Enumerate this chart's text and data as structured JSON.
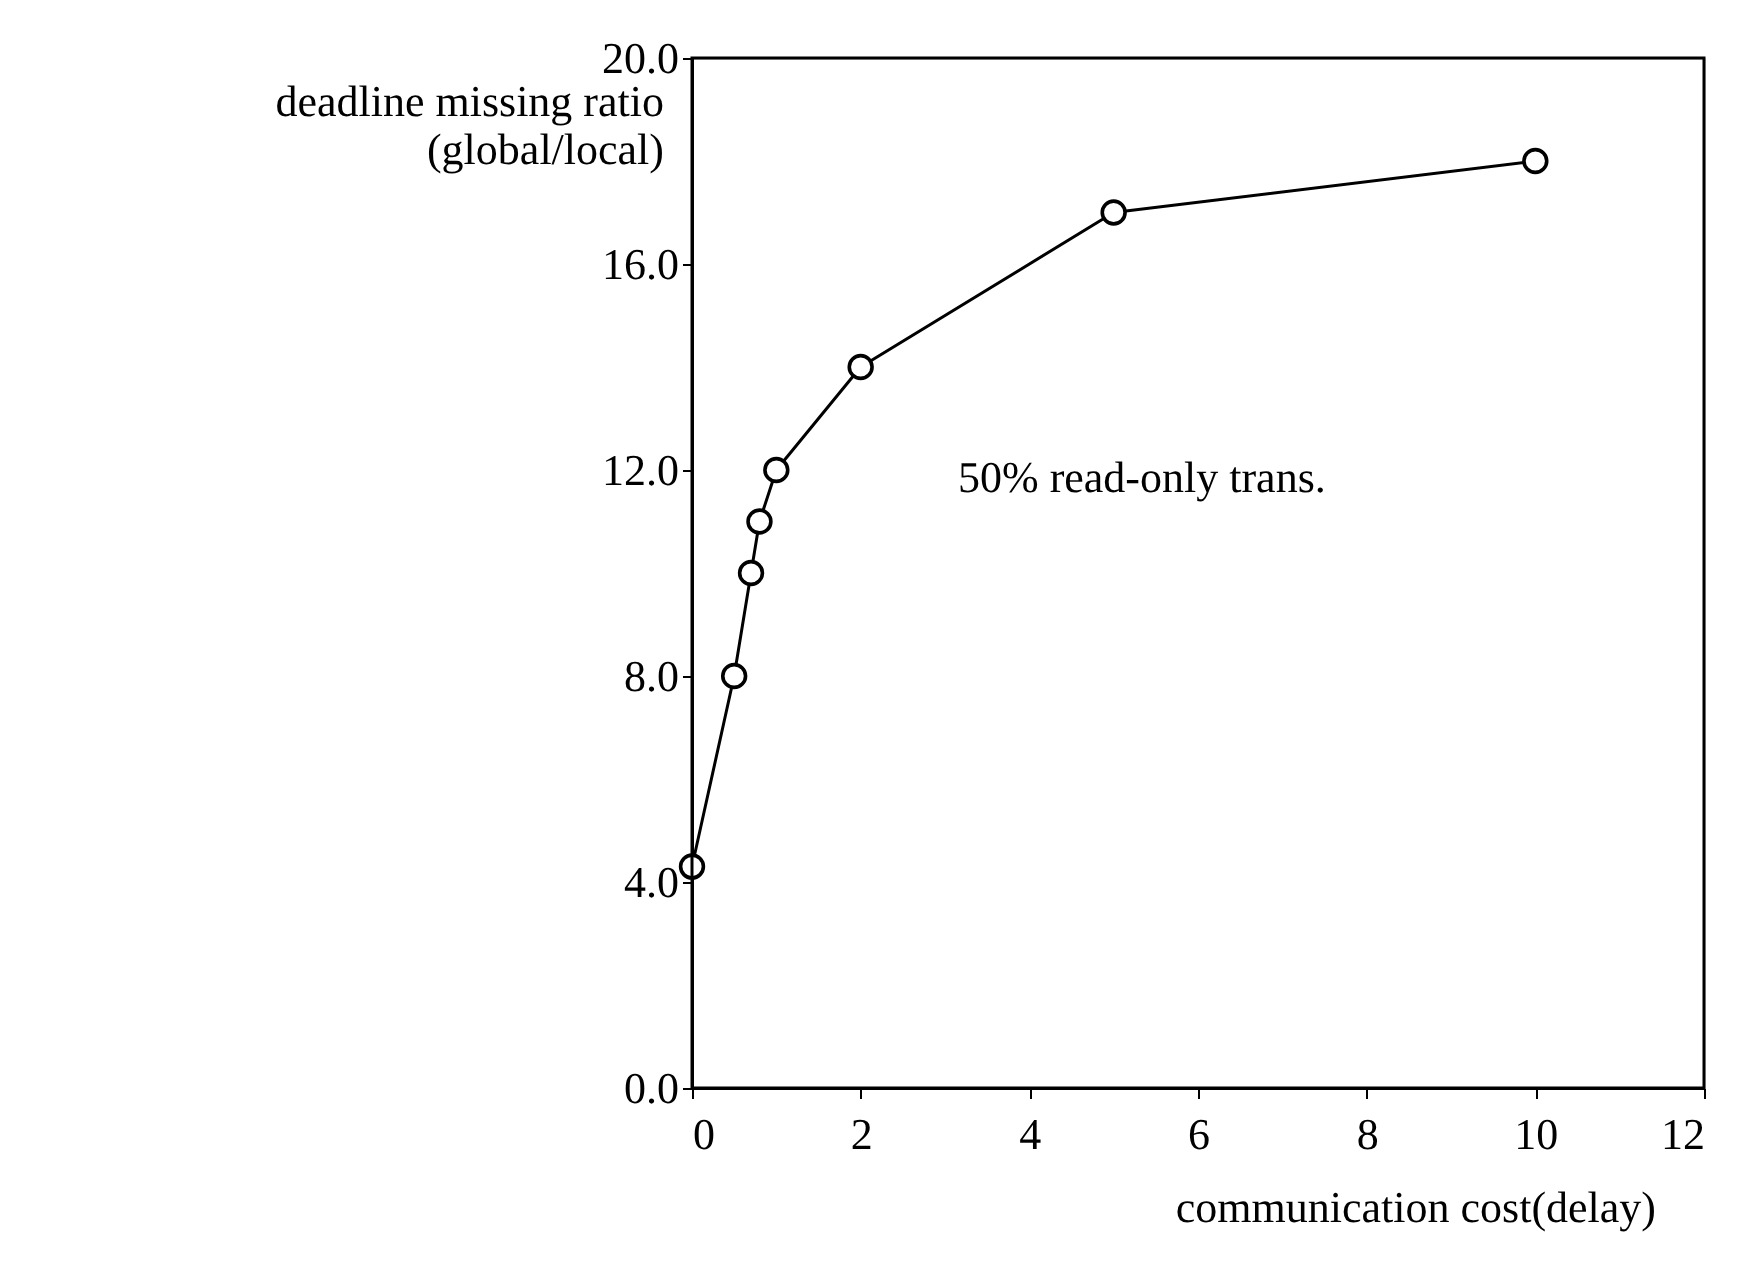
{
  "chart_data": {
    "type": "line",
    "xlabel": "communication cost(delay)",
    "ylabel": "deadline missing ratio\n(global/local)",
    "series": [
      {
        "color": "#000000",
        "x": [
          0,
          0.5,
          0.7,
          0.8,
          1,
          2,
          5,
          10
        ],
        "values": [
          4.3,
          8.0,
          10.0,
          11.0,
          12.0,
          14.0,
          17.0,
          18.0
        ]
      }
    ],
    "xlim": [
      0,
      12
    ],
    "xticks": [
      0,
      2,
      4,
      6,
      8,
      10,
      12
    ],
    "ylim": [
      0,
      20
    ],
    "yticks": [
      {
        "value": 0,
        "label": "0.0"
      },
      {
        "value": 4,
        "label": "4.0"
      },
      {
        "value": 8,
        "label": "8.0"
      },
      {
        "value": 12,
        "label": "12.0"
      },
      {
        "value": 16,
        "label": "16.0"
      },
      {
        "value": 20,
        "label": "20.0"
      }
    ],
    "annotations": [
      "50% read-only trans."
    ],
    "marker": "circle",
    "line_style": "solid",
    "grid": false
  }
}
